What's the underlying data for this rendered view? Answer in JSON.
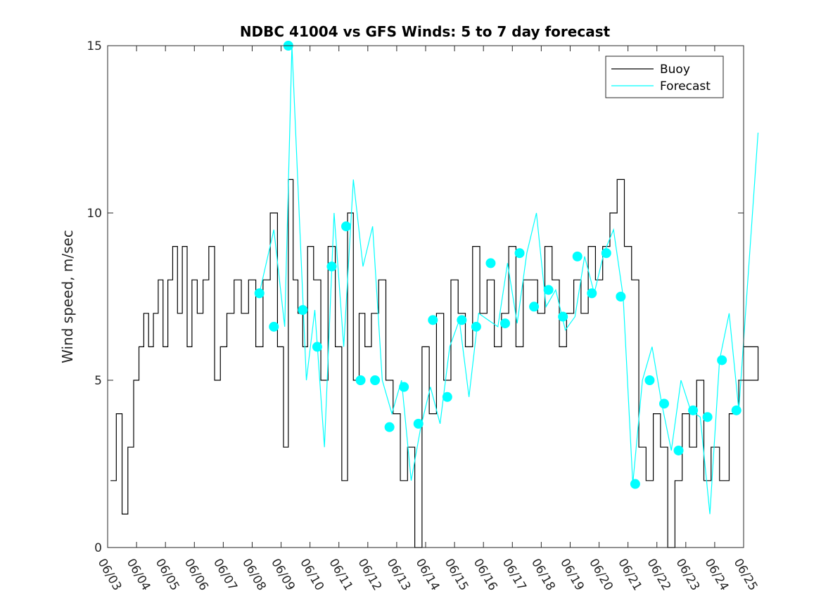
{
  "chart_data": {
    "type": "line",
    "title": "NDBC 41004 vs GFS Winds: 5 to 7 day forecast",
    "xlabel": "",
    "ylabel": "Wind speed, m/sec",
    "xlim": [
      "06/03",
      "06/25"
    ],
    "ylim": [
      0,
      15
    ],
    "y_ticks": [
      0,
      5,
      10,
      15
    ],
    "x_ticks": [
      "06/03",
      "06/04",
      "06/05",
      "06/06",
      "06/07",
      "06/08",
      "06/09",
      "06/10",
      "06/11",
      "06/12",
      "06/13",
      "06/14",
      "06/15",
      "06/16",
      "06/17",
      "06/18",
      "06/19",
      "06/20",
      "06/21",
      "06/22",
      "06/23",
      "06/24",
      "06/25"
    ],
    "grid": false,
    "legend": {
      "location": "top-right",
      "entries": [
        "Buoy",
        "Forecast"
      ]
    },
    "colors": {
      "buoy": "#000000",
      "forecast": "#00ffff",
      "marker": "#00ffff"
    },
    "series": [
      {
        "name": "Buoy",
        "color": "#000000",
        "style": "step",
        "x": [
          "06/03",
          "06/03",
          "06/03",
          "06/03",
          "06/03",
          "06/04",
          "06/04",
          "06/04",
          "06/04",
          "06/04",
          "06/04",
          "06/05",
          "06/05",
          "06/05",
          "06/05",
          "06/05",
          "06/05",
          "06/06",
          "06/06",
          "06/06",
          "06/06",
          "06/06",
          "06/07",
          "06/07",
          "06/07",
          "06/07",
          "06/08",
          "06/08",
          "06/08",
          "06/08",
          "06/09",
          "06/09",
          "06/09",
          "06/09",
          "06/09",
          "06/09",
          "06/10",
          "06/10",
          "06/10",
          "06/10",
          "06/11",
          "06/11",
          "06/11",
          "06/11",
          "06/11",
          "06/12",
          "06/12",
          "06/12",
          "06/12",
          "06/13",
          "06/13",
          "06/13",
          "06/13",
          "06/14",
          "06/14",
          "06/14",
          "06/14",
          "06/15",
          "06/15",
          "06/15",
          "06/15",
          "06/16",
          "06/16",
          "06/16",
          "06/16",
          "06/17",
          "06/17",
          "06/17",
          "06/17",
          "06/18",
          "06/18",
          "06/18",
          "06/18",
          "06/19",
          "06/19",
          "06/19",
          "06/19",
          "06/20",
          "06/20",
          "06/20",
          "06/20",
          "06/21",
          "06/21",
          "06/21",
          "06/21",
          "06/22",
          "06/22",
          "06/22",
          "06/22",
          "06/23",
          "06/23",
          "06/23",
          "06/23",
          "06/24",
          "06/24",
          "06/24",
          "06/25"
        ],
        "values": [
          2,
          4,
          1,
          3,
          5,
          6,
          7,
          6,
          7,
          8,
          6,
          8,
          9,
          7,
          9,
          6,
          8,
          7,
          8,
          9,
          5,
          6,
          7,
          8,
          7,
          8,
          6,
          8,
          10,
          6,
          3,
          11,
          8,
          7,
          6,
          9,
          8,
          5,
          9,
          6,
          2,
          10,
          5,
          7,
          6,
          7,
          8,
          5,
          4,
          2,
          3,
          0,
          6,
          4,
          7,
          5,
          8,
          7,
          6,
          9,
          7,
          8,
          6,
          7,
          9,
          6,
          8,
          8,
          7,
          9,
          8,
          6,
          7,
          8,
          7,
          9,
          8,
          9,
          10,
          11,
          9,
          8,
          3,
          2,
          4,
          3,
          0,
          2,
          4,
          3,
          5,
          2,
          3,
          2,
          4,
          5,
          6
        ]
      },
      {
        "name": "Forecast",
        "color": "#00ffff",
        "style": "line",
        "x": [
          "06/08",
          "06/08",
          "06/09",
          "06/09",
          "06/09",
          "06/09",
          "06/10",
          "06/10",
          "06/10",
          "06/11",
          "06/11",
          "06/11",
          "06/12",
          "06/12",
          "06/12",
          "06/13",
          "06/13",
          "06/13",
          "06/14",
          "06/14",
          "06/14",
          "06/15",
          "06/15",
          "06/15",
          "06/16",
          "06/16",
          "06/16",
          "06/17",
          "06/17",
          "06/17",
          "06/18",
          "06/18",
          "06/18",
          "06/19",
          "06/19",
          "06/19",
          "06/20",
          "06/20",
          "06/20",
          "06/21",
          "06/21",
          "06/21",
          "06/22",
          "06/22",
          "06/22",
          "06/23",
          "06/23",
          "06/23",
          "06/24",
          "06/24",
          "06/24",
          "06/25"
        ],
        "values": [
          7.6,
          9.5,
          6.6,
          15,
          10,
          5,
          7.1,
          3,
          10,
          6.0,
          11,
          8.4,
          9.6,
          5,
          4,
          5.0,
          2,
          3.6,
          4.8,
          3.7,
          6,
          6.8,
          4.5,
          7,
          6.8,
          6.6,
          8.5,
          6.7,
          8.8,
          10,
          7.2,
          7.7,
          6.5,
          6.9,
          8.7,
          7.6,
          8.8,
          9.5,
          7.5,
          1.9,
          5.0,
          6,
          4.3,
          2.9,
          5,
          4.1,
          3.9,
          1,
          5.6,
          7,
          4.1,
          12.4
        ]
      }
    ],
    "markers": {
      "name": "Forecast points",
      "x": [
        "06/08",
        "06/08",
        "06/09",
        "06/09",
        "06/10",
        "06/10",
        "06/11",
        "06/11",
        "06/12",
        "06/12",
        "06/13",
        "06/13",
        "06/14",
        "06/14",
        "06/15",
        "06/15",
        "06/16",
        "06/16",
        "06/17",
        "06/17",
        "06/18",
        "06/18",
        "06/19",
        "06/19",
        "06/20",
        "06/20",
        "06/21",
        "06/21",
        "06/22",
        "06/22",
        "06/23",
        "06/23",
        "06/24",
        "06/24"
      ],
      "values": [
        7.6,
        6.6,
        15.0,
        7.1,
        6.0,
        8.4,
        9.6,
        5.0,
        5.0,
        3.6,
        4.8,
        3.7,
        6.8,
        4.5,
        6.8,
        6.6,
        8.5,
        6.7,
        8.8,
        7.2,
        7.7,
        6.9,
        8.7,
        7.6,
        8.8,
        7.5,
        1.9,
        5.0,
        4.3,
        2.9,
        4.1,
        3.9,
        5.6,
        4.1
      ]
    }
  }
}
